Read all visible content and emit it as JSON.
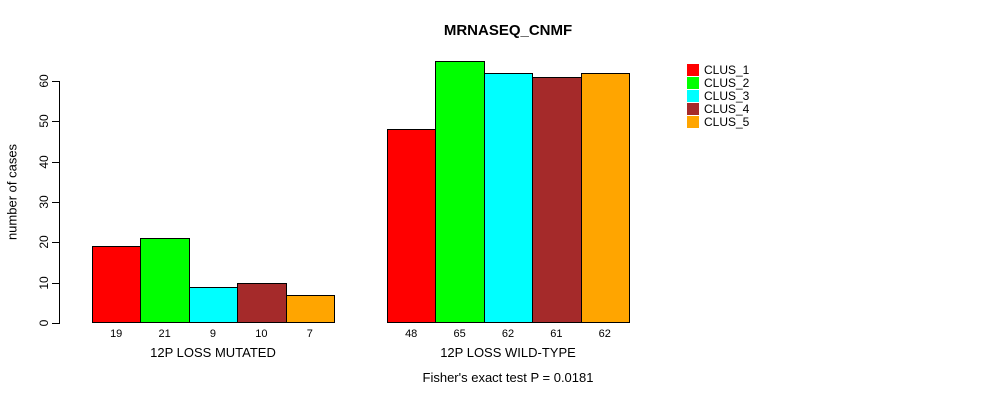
{
  "page": {
    "background": "#FFFFFF",
    "text_color": "#000000"
  },
  "chart_data": {
    "type": "bar",
    "title": "MRNASEQ_CNMF",
    "xlabel": "",
    "ylabel": "number of cases",
    "categories": [
      "12P LOSS MUTATED",
      "12P LOSS WILD-TYPE"
    ],
    "series": [
      {
        "name": "CLUS_1",
        "color": "#FF0000",
        "values": [
          19,
          48
        ]
      },
      {
        "name": "CLUS_2",
        "color": "#00FF00",
        "values": [
          21,
          65
        ]
      },
      {
        "name": "CLUS_3",
        "color": "#00FFFF",
        "values": [
          9,
          62
        ]
      },
      {
        "name": "CLUS_4",
        "color": "#A52A2A",
        "values": [
          10,
          61
        ]
      },
      {
        "name": "CLUS_5",
        "color": "#FFA500",
        "values": [
          7,
          62
        ]
      }
    ],
    "bar_value_labels": {
      "12P LOSS MUTATED": [
        "19",
        "21",
        "9",
        "10",
        "7"
      ],
      "12P LOSS WILD-TYPE": [
        "48",
        "65",
        "62",
        "61",
        "62"
      ]
    },
    "yticks": [
      "0",
      "10",
      "20",
      "30",
      "40",
      "50",
      "60"
    ],
    "ylim": [
      0,
      60
    ],
    "grid": false,
    "legend_position": "right",
    "legend_entries": [
      "CLUS_1",
      "CLUS_2",
      "CLUS_3",
      "CLUS_4",
      "CLUS_5"
    ],
    "annotation": "Fisher's exact test P = 0.0181"
  }
}
